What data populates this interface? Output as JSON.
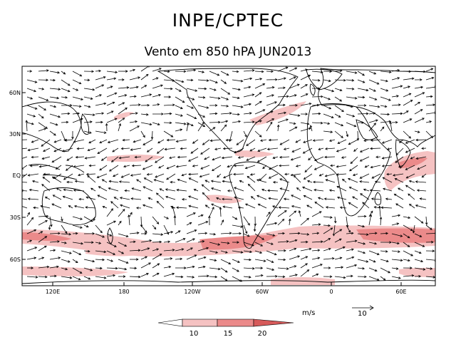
{
  "header": {
    "title": "INPE/CPTEC",
    "subtitle": "Vento em 850 hPA JUN2013"
  },
  "map": {
    "lat_ticks": [
      "60N",
      "30N",
      "EQ",
      "30S",
      "60S"
    ],
    "lon_ticks": [
      "120E",
      "180",
      "120W",
      "60W",
      "0",
      "60E"
    ]
  },
  "legend": {
    "units": "m/s",
    "reference_vector": "10",
    "levels": [
      "10",
      "15",
      "20"
    ],
    "colors": [
      "#ffffff",
      "#f5c2c2",
      "#eb8a8a",
      "#d65a5a"
    ]
  }
}
